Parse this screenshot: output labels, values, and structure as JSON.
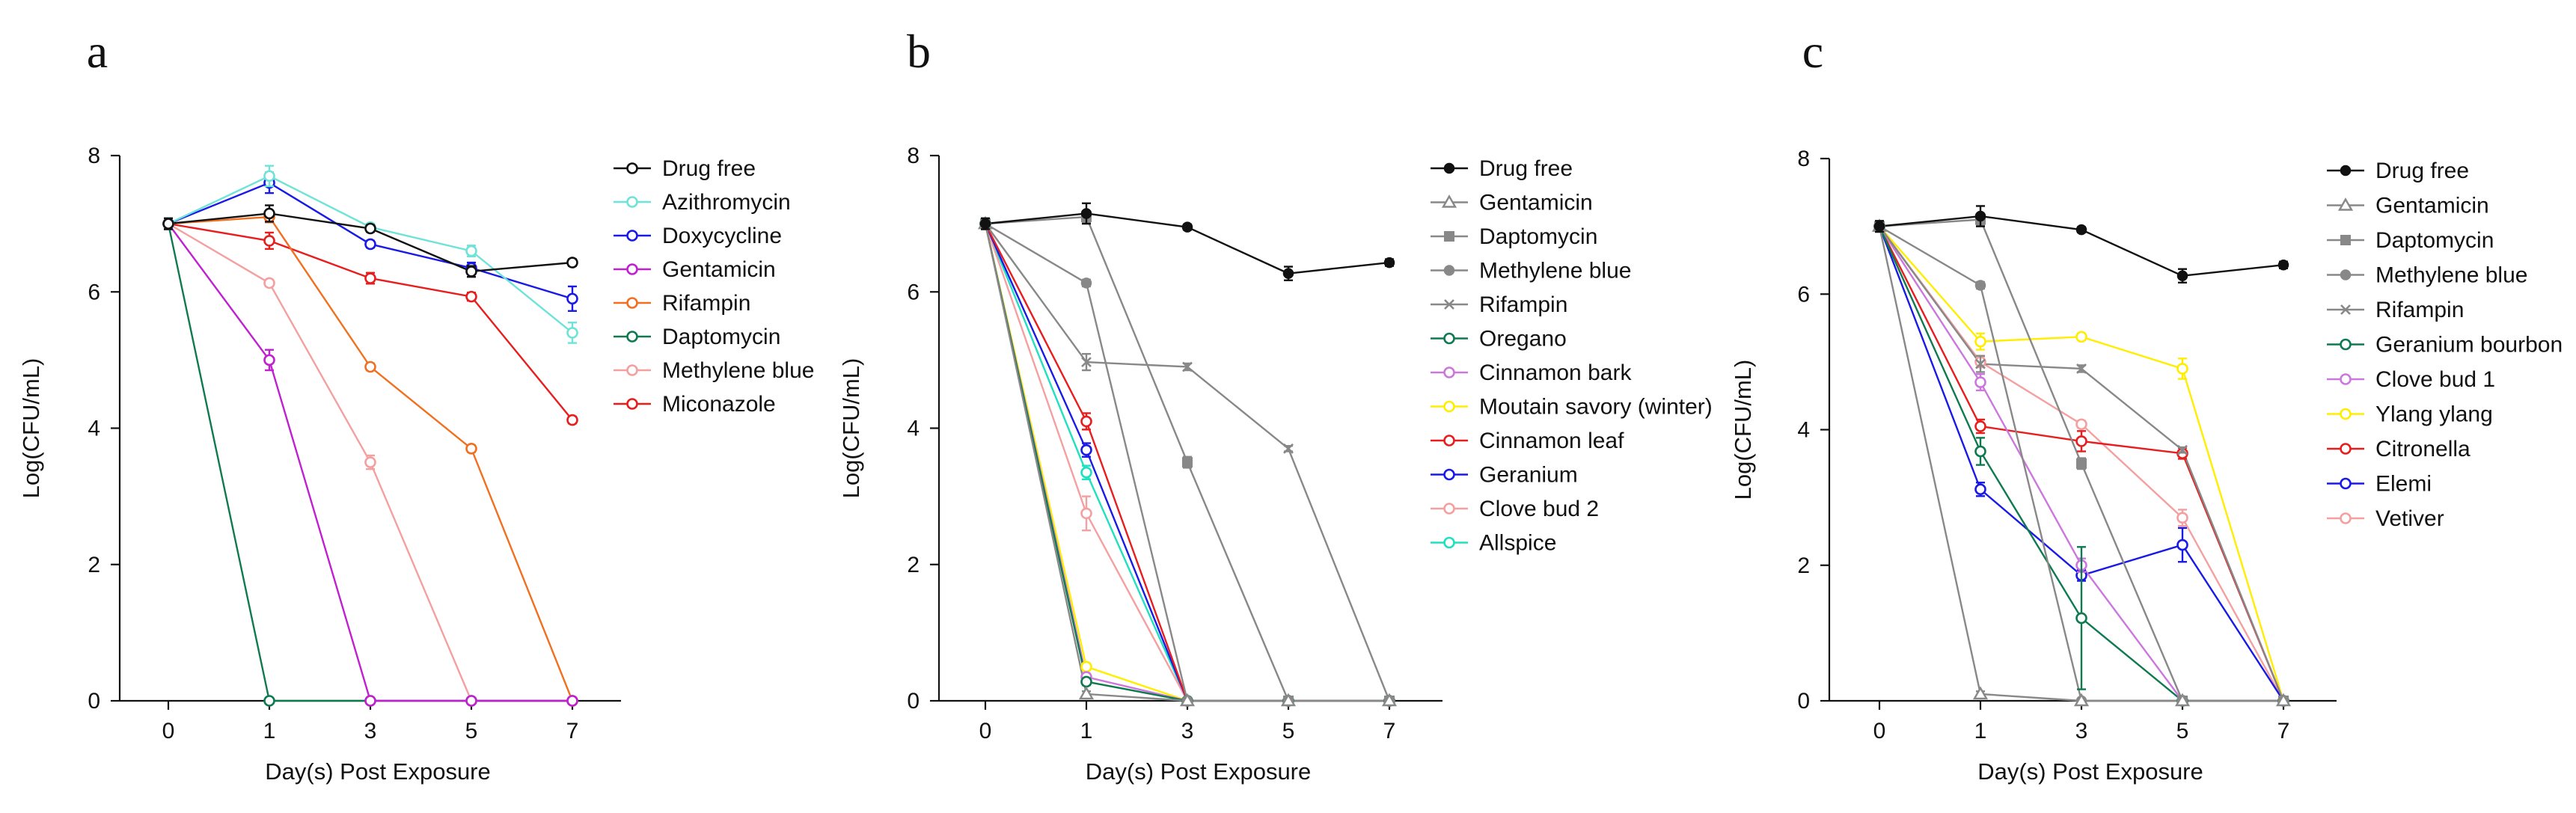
{
  "chart_data": [
    {
      "type": "line",
      "panel_label": "a",
      "xlabel": "Day(s) Post Exposure",
      "ylabel": "Log(CFU/mL)",
      "x_ticks": [
        "0",
        "1",
        "3",
        "5",
        "7"
      ],
      "y_ticks": [
        "0",
        "2",
        "4",
        "6",
        "8"
      ],
      "ylim": [
        0,
        8
      ],
      "legend_position": "right",
      "series": [
        {
          "name": "Drug free",
          "color": "#111111",
          "marker": "open-circle",
          "values": [
            7.0,
            7.15,
            6.93,
            6.3,
            6.43
          ],
          "errors": [
            0.08,
            0.12,
            0.05,
            0.08,
            0.05
          ]
        },
        {
          "name": "Azithromycin",
          "color": "#6fe3d8",
          "marker": "open-circle",
          "values": [
            7.0,
            7.7,
            6.95,
            6.6,
            5.4
          ],
          "errors": [
            0.08,
            0.15,
            0.05,
            0.08,
            0.15
          ]
        },
        {
          "name": "Doxycycline",
          "color": "#1a1ae6",
          "marker": "open-circle",
          "values": [
            7.0,
            7.6,
            6.7,
            6.35,
            5.9
          ],
          "errors": [
            0.08,
            0.15,
            0.05,
            0.08,
            0.18
          ]
        },
        {
          "name": "Gentamicin",
          "color": "#c020d0",
          "marker": "open-circle",
          "values": [
            7.0,
            5.0,
            0,
            0,
            0
          ],
          "errors": [
            0.08,
            0.15,
            0,
            0,
            0
          ]
        },
        {
          "name": "Rifampin",
          "color": "#f07020",
          "marker": "open-circle",
          "values": [
            7.0,
            7.1,
            4.9,
            3.7,
            0
          ],
          "errors": [
            0.08,
            0.08,
            0.05,
            0.05,
            0
          ]
        },
        {
          "name": "Daptomycin",
          "color": "#0f7a50",
          "marker": "open-circle",
          "values": [
            7.0,
            0,
            0,
            0,
            0
          ],
          "errors": [
            0.08,
            0,
            0,
            0,
            0
          ]
        },
        {
          "name": "Methylene blue",
          "color": "#f4a0a0",
          "marker": "open-circle",
          "values": [
            7.0,
            6.13,
            3.5,
            0,
            0
          ],
          "errors": [
            0.08,
            0.05,
            0.1,
            0,
            0
          ]
        },
        {
          "name": "Miconazole",
          "color": "#e81e1e",
          "marker": "open-circle",
          "values": [
            7.0,
            6.75,
            6.2,
            5.93,
            4.12
          ],
          "errors": [
            0.08,
            0.12,
            0.08,
            0.06,
            0.05
          ]
        }
      ]
    },
    {
      "type": "line",
      "panel_label": "b",
      "xlabel": "Day(s) Post Exposure",
      "ylabel": "Log(CFU/mL)",
      "x_ticks": [
        "0",
        "1",
        "3",
        "5",
        "7"
      ],
      "y_ticks": [
        "0",
        "2",
        "4",
        "6",
        "8"
      ],
      "ylim": [
        0,
        8
      ],
      "legend_position": "right",
      "series": [
        {
          "name": "Drug free",
          "color": "#111111",
          "marker": "filled-circle",
          "values": [
            7.0,
            7.15,
            6.95,
            6.27,
            6.43
          ],
          "errors": [
            0.08,
            0.15,
            0.04,
            0.1,
            0.05
          ]
        },
        {
          "name": "Gentamicin",
          "color": "#888888",
          "marker": "triangle",
          "values": [
            7.0,
            0.1,
            0,
            0,
            0
          ],
          "errors": [
            0.08,
            0.04,
            0,
            0,
            0
          ]
        },
        {
          "name": "Daptomycin",
          "color": "#888888",
          "marker": "square",
          "values": [
            7.0,
            7.1,
            3.5,
            0,
            0
          ],
          "errors": [
            0.08,
            0.08,
            0.08,
            0,
            0
          ]
        },
        {
          "name": "Methylene blue",
          "color": "#888888",
          "marker": "filled-circle",
          "values": [
            7.0,
            6.13,
            0,
            0,
            0
          ],
          "errors": [
            0.08,
            0.05,
            0,
            0,
            0
          ]
        },
        {
          "name": "Rifampin",
          "color": "#888888",
          "marker": "cross",
          "values": [
            7.0,
            4.97,
            4.9,
            3.7,
            0
          ],
          "errors": [
            0.08,
            0.12,
            0.05,
            0.04,
            0
          ]
        },
        {
          "name": "Oregano",
          "color": "#0f7a50",
          "marker": "open-circle",
          "values": [
            7.0,
            0.28,
            0,
            0,
            0
          ],
          "errors": [
            0.08,
            0.05,
            0,
            0,
            0
          ]
        },
        {
          "name": "Cinnamon bark",
          "color": "#cc77dd",
          "marker": "open-circle",
          "values": [
            7.0,
            0.35,
            0,
            0,
            0
          ],
          "errors": [
            0.08,
            0.05,
            0,
            0,
            0
          ]
        },
        {
          "name": "Moutain savory (winter)",
          "color": "#ffee00",
          "marker": "open-circle",
          "values": [
            7.0,
            0.5,
            0,
            0,
            0
          ],
          "errors": [
            0.08,
            0.05,
            0,
            0,
            0
          ]
        },
        {
          "name": "Cinnamon leaf",
          "color": "#e81e1e",
          "marker": "open-circle",
          "values": [
            7.0,
            4.1,
            0,
            0,
            0
          ],
          "errors": [
            0.08,
            0.12,
            0,
            0,
            0
          ]
        },
        {
          "name": "Geranium",
          "color": "#1a1ae6",
          "marker": "open-circle",
          "values": [
            7.0,
            3.68,
            0,
            0,
            0
          ],
          "errors": [
            0.08,
            0.1,
            0,
            0,
            0
          ]
        },
        {
          "name": "Clove bud 2",
          "color": "#f4a0a0",
          "marker": "open-circle",
          "values": [
            7.0,
            2.75,
            0,
            0,
            0
          ],
          "errors": [
            0.08,
            0.25,
            0,
            0,
            0
          ]
        },
        {
          "name": "Allspice",
          "color": "#20e0c0",
          "marker": "open-circle",
          "values": [
            7.0,
            3.35,
            0,
            0,
            0
          ],
          "errors": [
            0.08,
            0.1,
            0,
            0,
            0
          ]
        }
      ]
    },
    {
      "type": "line",
      "panel_label": "c",
      "xlabel": "Day(s) Post Exposure",
      "ylabel": "Log(CFU/mL)",
      "x_ticks": [
        "0",
        "1",
        "3",
        "5",
        "7"
      ],
      "y_ticks": [
        "0",
        "2",
        "4",
        "6",
        "8"
      ],
      "ylim": [
        0,
        8
      ],
      "legend_position": "right",
      "series": [
        {
          "name": "Drug free",
          "color": "#111111",
          "marker": "filled-circle",
          "values": [
            7.0,
            7.15,
            6.95,
            6.27,
            6.43
          ],
          "errors": [
            0.08,
            0.15,
            0.04,
            0.1,
            0.05
          ]
        },
        {
          "name": "Gentamicin",
          "color": "#888888",
          "marker": "triangle",
          "values": [
            7.0,
            0.1,
            0,
            0,
            0
          ],
          "errors": [
            0.08,
            0.04,
            0,
            0,
            0
          ]
        },
        {
          "name": "Daptomycin",
          "color": "#888888",
          "marker": "square",
          "values": [
            7.0,
            7.1,
            3.5,
            0,
            0
          ],
          "errors": [
            0.08,
            0.08,
            0.08,
            0,
            0
          ]
        },
        {
          "name": "Methylene blue",
          "color": "#888888",
          "marker": "filled-circle",
          "values": [
            7.0,
            6.13,
            0,
            0,
            0
          ],
          "errors": [
            0.08,
            0.05,
            0,
            0,
            0
          ]
        },
        {
          "name": "Rifampin",
          "color": "#888888",
          "marker": "cross",
          "values": [
            7.0,
            4.97,
            4.9,
            3.7,
            0
          ],
          "errors": [
            0.08,
            0.12,
            0.05,
            0.04,
            0
          ]
        },
        {
          "name": "Geranium bourbon",
          "color": "#0f7a50",
          "marker": "open-circle",
          "values": [
            7.0,
            3.68,
            1.22,
            0,
            0
          ],
          "errors": [
            0.08,
            0.2,
            1.05,
            0,
            0
          ]
        },
        {
          "name": "Clove bud 1",
          "color": "#cc77dd",
          "marker": "open-circle",
          "values": [
            7.0,
            4.7,
            2.0,
            0,
            0
          ],
          "errors": [
            0.08,
            0.12,
            0.1,
            0,
            0
          ]
        },
        {
          "name": "Ylang ylang",
          "color": "#ffee00",
          "marker": "open-circle",
          "values": [
            7.0,
            5.3,
            5.37,
            4.9,
            0
          ],
          "errors": [
            0.08,
            0.12,
            0.05,
            0.15,
            0
          ]
        },
        {
          "name": "Citronella",
          "color": "#e81e1e",
          "marker": "open-circle",
          "values": [
            7.0,
            4.05,
            3.83,
            3.65,
            0
          ],
          "errors": [
            0.08,
            0.1,
            0.15,
            0.08,
            0
          ]
        },
        {
          "name": "Elemi",
          "color": "#1a1ae6",
          "marker": "open-circle",
          "values": [
            7.0,
            3.12,
            1.85,
            2.3,
            0
          ],
          "errors": [
            0.08,
            0.1,
            0.08,
            0.25,
            0
          ]
        },
        {
          "name": "Vetiver",
          "color": "#f4a0a0",
          "marker": "open-circle",
          "values": [
            7.0,
            5.0,
            4.08,
            2.7,
            0
          ],
          "errors": [
            0.08,
            0.08,
            0.05,
            0.12,
            0
          ]
        }
      ]
    }
  ]
}
